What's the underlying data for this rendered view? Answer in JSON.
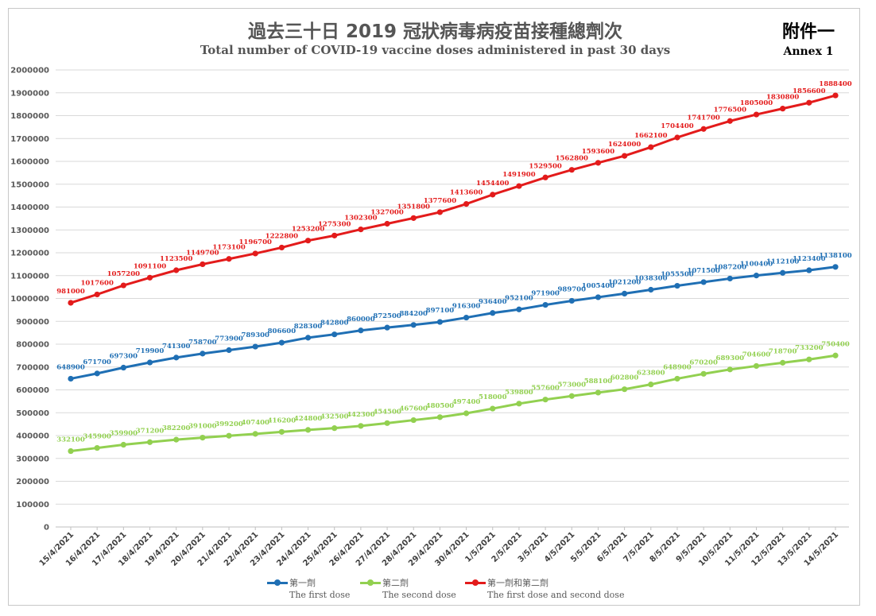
{
  "header": {
    "title_zh": "過去三十日 2019 冠狀病毒病疫苗接種總劑次",
    "title_en": "Total number of COVID-19 vaccine doses administered in past 30 days",
    "annex_zh": "附件一",
    "annex_en": "Annex 1"
  },
  "colors": {
    "first": "#1f6fb4",
    "second": "#92d050",
    "total": "#e31b1b",
    "grid": "#d9d9d9"
  },
  "chart_data": {
    "type": "line",
    "title": "Total number of COVID-19 vaccine doses administered in past 30 days",
    "ylim": [
      0,
      2000000
    ],
    "ytick_step": 100000,
    "grid": "horizontal",
    "legend_position": "bottom",
    "categories": [
      "15/4/2021",
      "16/4/2021",
      "17/4/2021",
      "18/4/2021",
      "19/4/2021",
      "20/4/2021",
      "21/4/2021",
      "22/4/2021",
      "23/4/2021",
      "24/4/2021",
      "25/4/2021",
      "26/4/2021",
      "27/4/2021",
      "28/4/2021",
      "29/4/2021",
      "30/4/2021",
      "1/5/2021",
      "2/5/2021",
      "3/5/2021",
      "4/5/2021",
      "5/5/2021",
      "6/5/2021",
      "7/5/2021",
      "8/5/2021",
      "9/5/2021",
      "10/5/2021",
      "11/5/2021",
      "12/5/2021",
      "13/5/2021",
      "14/5/2021"
    ],
    "series": [
      {
        "key": "first",
        "name_zh": "第一劑",
        "name_en": "The first dose",
        "values": [
          648900,
          671700,
          697300,
          719900,
          741300,
          758700,
          773900,
          789300,
          806600,
          828300,
          842800,
          860000,
          872500,
          884200,
          897100,
          916300,
          936400,
          952100,
          971900,
          989700,
          1005400,
          1021200,
          1038300,
          1055500,
          1071500,
          1087200,
          1100400,
          1112100,
          1123400,
          1138100
        ]
      },
      {
        "key": "second",
        "name_zh": "第二劑",
        "name_en": "The second dose",
        "values": [
          332100,
          345900,
          359900,
          371200,
          382200,
          391000,
          399200,
          407400,
          416200,
          424800,
          432500,
          442300,
          454500,
          467600,
          480500,
          497400,
          518000,
          539800,
          557600,
          573000,
          588100,
          602800,
          623800,
          648900,
          670200,
          689300,
          704600,
          718700,
          733200,
          750400
        ]
      },
      {
        "key": "total",
        "name_zh": "第一劑和第二劑",
        "name_en": "The first dose and second dose",
        "values": [
          981000,
          1017600,
          1057200,
          1091100,
          1123500,
          1149700,
          1173100,
          1196700,
          1222800,
          1253200,
          1275300,
          1302300,
          1327000,
          1351800,
          1377600,
          1413600,
          1454400,
          1491900,
          1529500,
          1562800,
          1593600,
          1624000,
          1662100,
          1704400,
          1741700,
          1776500,
          1805000,
          1830800,
          1856600,
          1888400
        ]
      }
    ]
  }
}
